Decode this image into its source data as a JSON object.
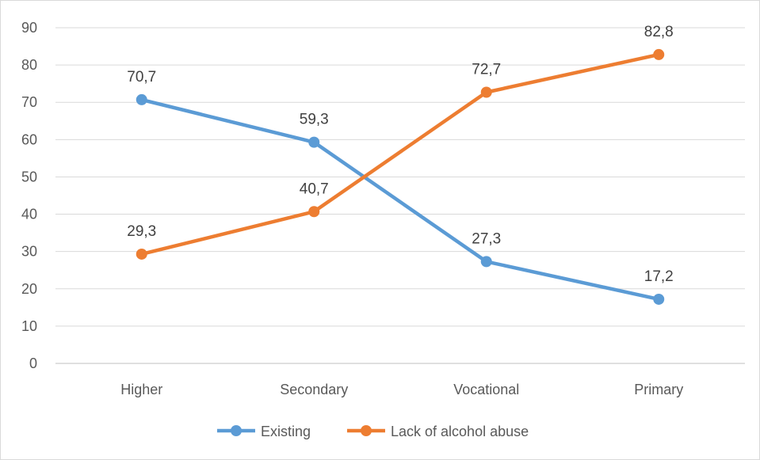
{
  "chart_data": {
    "type": "line",
    "categories": [
      "Higher",
      "Secondary",
      "Vocational",
      "Primary"
    ],
    "series": [
      {
        "name": "Existing",
        "values": [
          70.7,
          59.3,
          27.3,
          17.2
        ],
        "labels": [
          "70,7",
          "59,3",
          "27,3",
          "17,2"
        ],
        "color": "#5b9bd5"
      },
      {
        "name": "Lack of alcohol abuse",
        "values": [
          29.3,
          40.7,
          72.7,
          82.8
        ],
        "labels": [
          "29,3",
          "40,7",
          "72,7",
          "82,8"
        ],
        "color": "#ed7d31"
      }
    ],
    "ylim": [
      0,
      90
    ],
    "yticks": [
      0,
      10,
      20,
      30,
      40,
      50,
      60,
      70,
      80,
      90
    ],
    "grid": true,
    "legend": "bottom",
    "title": "",
    "xlabel": "",
    "ylabel": ""
  }
}
